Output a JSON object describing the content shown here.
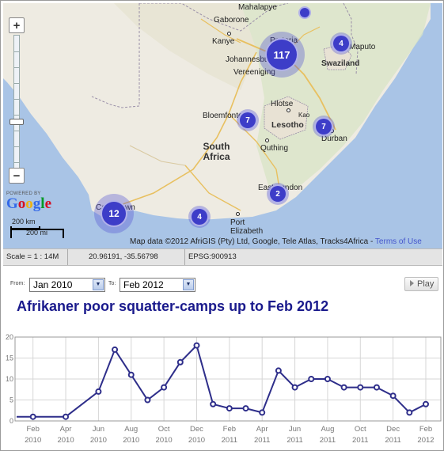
{
  "map": {
    "places": {
      "mahalapye": "Mahalapye",
      "gaborone": "Gaborone",
      "kanye": "Kanye",
      "pretoria": "Pretoria",
      "johannesburg": "Johannesburg",
      "vereeniging": "Vereeniging",
      "maputo": "Maputo",
      "swaziland": "Swaziland",
      "hlotse": "Hlotse",
      "bloemfontein": "Bloemfontein",
      "lesotho": "Lesotho",
      "kao": "Kao",
      "durban": "Durban",
      "south_africa": "South Africa",
      "quthing": "Quthing",
      "east_london": "East London",
      "cape_town": "Cape Town",
      "port_elizabeth": "Port Elizabeth"
    },
    "clusters": {
      "pretoria": "117",
      "swaziland": "4",
      "bloemfontein": "7",
      "durban": "7",
      "east_london": "2",
      "cape_town": "12",
      "port_elizabeth": "4"
    },
    "zoom_in": "+",
    "zoom_out": "−",
    "powered_by": "POWERED BY",
    "google": "Google",
    "scale_km": "200 km",
    "scale_mi": "200 mi",
    "attribution": "Map data ©2012 AfriGIS (Pty) Ltd, Google, Tele Atlas, Tracks4Africa - ",
    "terms": "Terms of Use"
  },
  "status": {
    "scale": "Scale = 1 : 14M",
    "coords": "20.96191, -35.56798",
    "epsg": "EPSG:900913"
  },
  "controls": {
    "from_label": "From:",
    "from_value": "Jan 2010",
    "to_label": "To:",
    "to_value": "Feb 2012",
    "play_label": "Play"
  },
  "title": "Afrikaner poor squatter-camps up to Feb 2012",
  "chart_data": {
    "type": "line",
    "x": [
      "Jan 2010",
      "Feb 2010",
      "Mar 2010",
      "Apr 2010",
      "May 2010",
      "Jun 2010",
      "Jul 2010",
      "Aug 2010",
      "Sep 2010",
      "Oct 2010",
      "Nov 2010",
      "Dec 2010",
      "Jan 2011",
      "Feb 2011",
      "Mar 2011",
      "Apr 2011",
      "May 2011",
      "Jun 2011",
      "Jul 2011",
      "Aug 2011",
      "Sep 2011",
      "Oct 2011",
      "Nov 2011",
      "Dec 2011",
      "Jan 2012",
      "Feb 2012"
    ],
    "values": [
      1,
      1,
      1,
      1,
      4,
      7,
      17,
      11,
      5,
      8,
      14,
      18,
      4,
      3,
      3,
      2,
      12,
      8,
      10,
      10,
      8,
      8,
      8,
      6,
      2,
      4
    ],
    "ylim": [
      0,
      20
    ],
    "yticks": [
      "0",
      "5",
      "10",
      "15",
      "20"
    ],
    "xticks": [
      {
        "month": "Feb",
        "year": "2010",
        "index": 1
      },
      {
        "month": "Apr",
        "year": "2010",
        "index": 3
      },
      {
        "month": "Jun",
        "year": "2010",
        "index": 5
      },
      {
        "month": "Aug",
        "year": "2010",
        "index": 7
      },
      {
        "month": "Oct",
        "year": "2010",
        "index": 9
      },
      {
        "month": "Dec",
        "year": "2010",
        "index": 11
      },
      {
        "month": "Feb",
        "year": "2011",
        "index": 13
      },
      {
        "month": "Apr",
        "year": "2011",
        "index": 15
      },
      {
        "month": "Jun",
        "year": "2011",
        "index": 17
      },
      {
        "month": "Aug",
        "year": "2011",
        "index": 19
      },
      {
        "month": "Oct",
        "year": "2011",
        "index": 21
      },
      {
        "month": "Dec",
        "year": "2011",
        "index": 23
      },
      {
        "month": "Feb",
        "year": "2012",
        "index": 25
      }
    ],
    "grid": true,
    "line_color": "#2e2e8a"
  }
}
